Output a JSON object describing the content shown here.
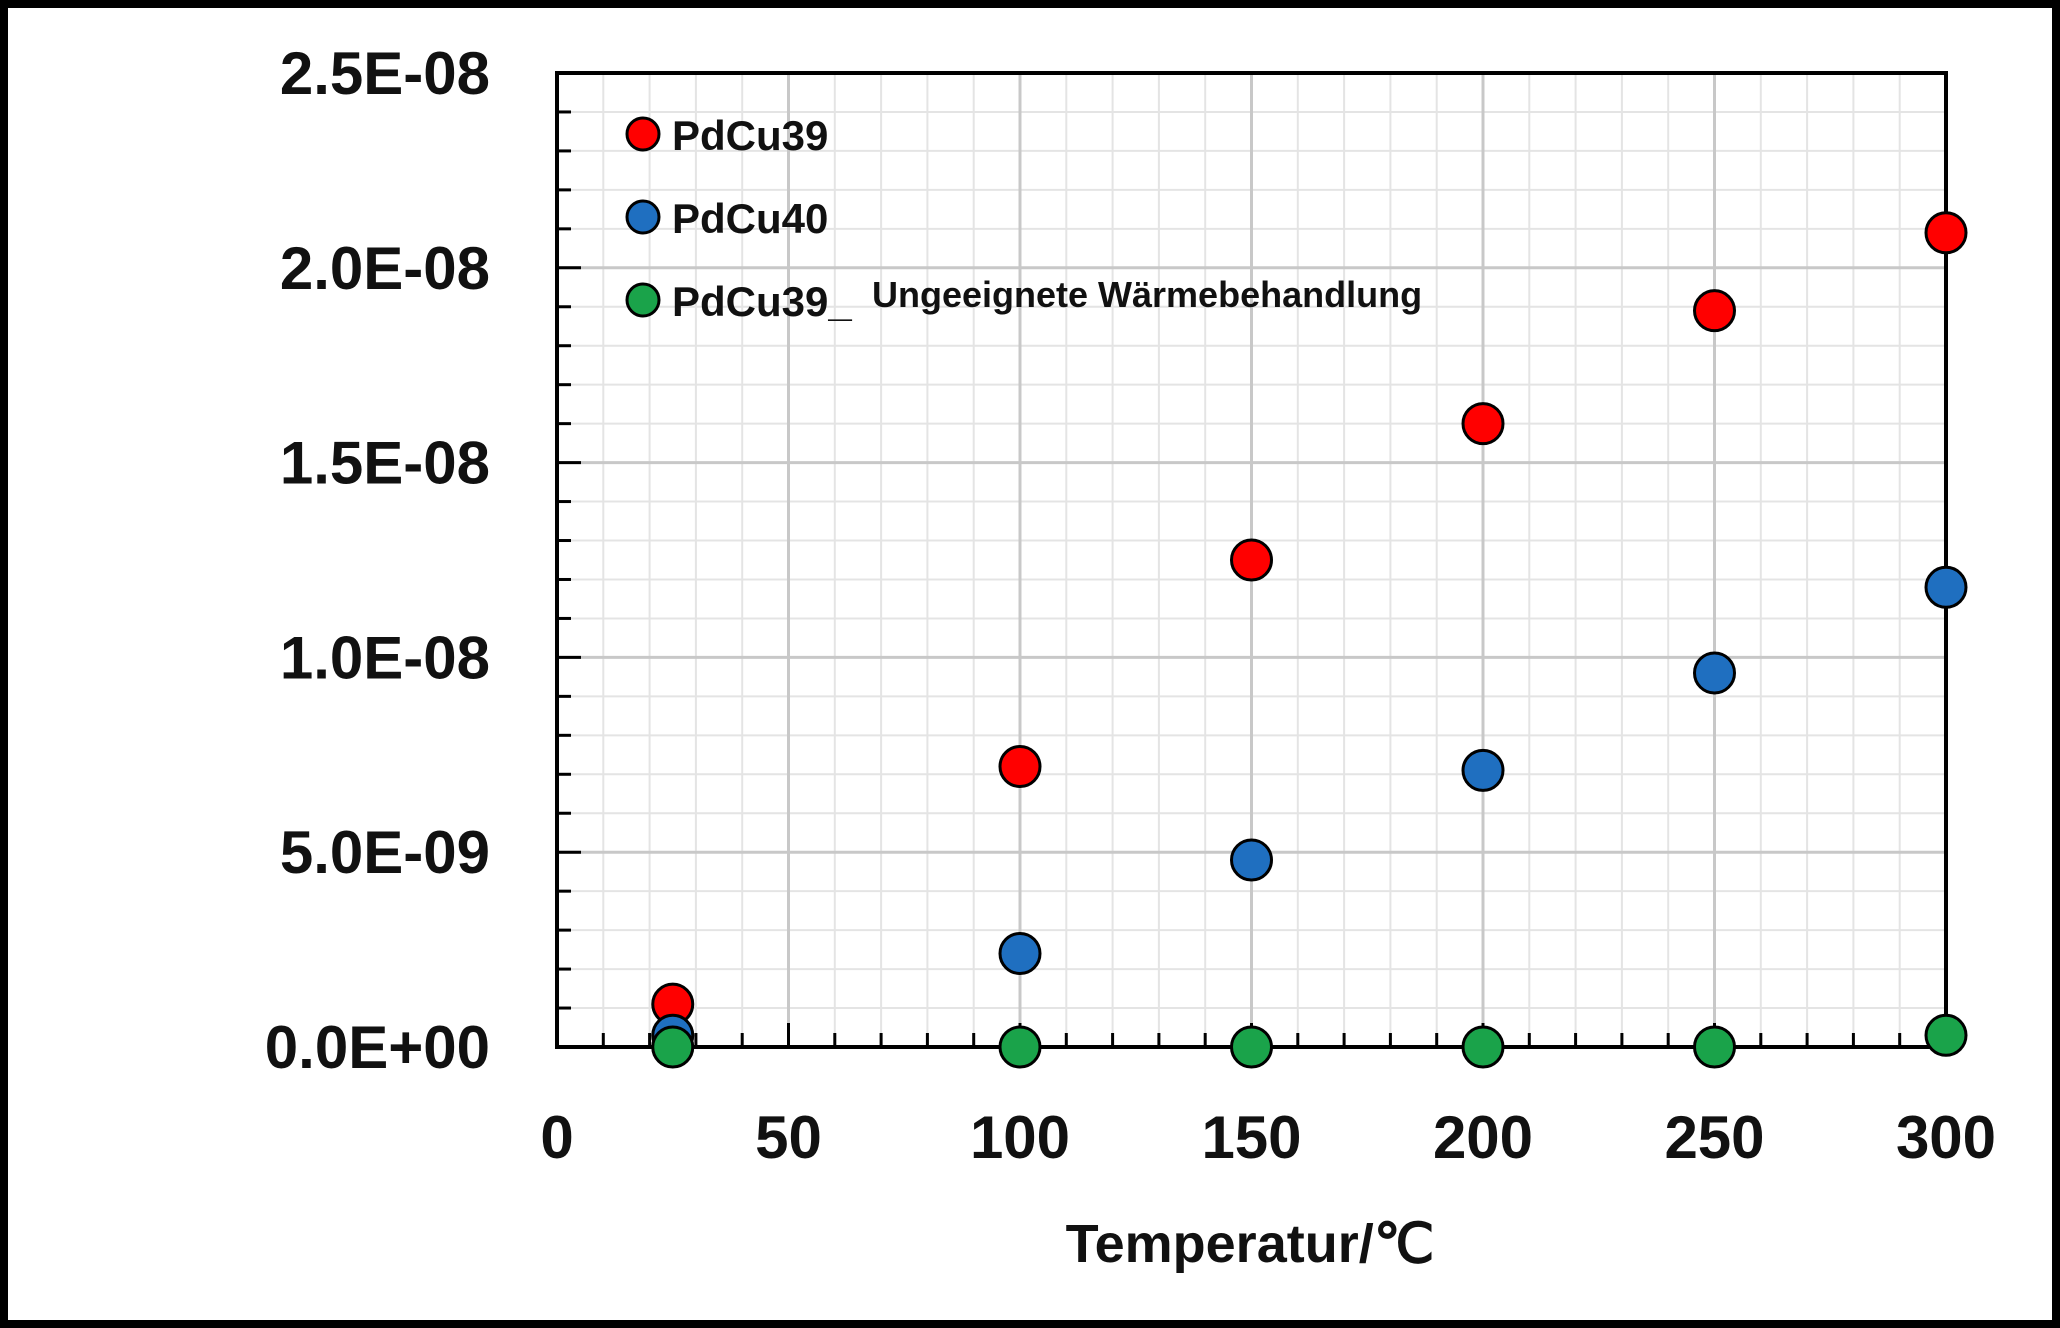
{
  "chart_data": {
    "type": "scatter",
    "title": "",
    "xlabel": "Temperatur/℃",
    "ylabel": "",
    "xlim": [
      0,
      300
    ],
    "ylim": [
      0,
      2.5e-08
    ],
    "x_ticks": [
      "0",
      "50",
      "100",
      "150",
      "200",
      "250",
      "300"
    ],
    "y_ticks": [
      "0.0E+00",
      "5.0E-09",
      "1.0E-08",
      "1.5E-08",
      "2.0E-08",
      "2.5E-08"
    ],
    "grid": true,
    "legend_position": "top-left",
    "series": [
      {
        "name": "PdCu39",
        "color": "#ff0000",
        "x": [
          25,
          100,
          150,
          200,
          250,
          300
        ],
        "y": [
          1.1e-09,
          7.2e-09,
          1.25e-08,
          1.6e-08,
          1.89e-08,
          2.09e-08
        ]
      },
      {
        "name": "PdCu40",
        "color": "#1f6fc0",
        "x": [
          25,
          100,
          150,
          200,
          250,
          300
        ],
        "y": [
          3e-10,
          2.4e-09,
          4.8e-09,
          7.1e-09,
          9.6e-09,
          1.18e-08
        ]
      },
      {
        "name_prefix": "PdCu39_",
        "name_suffix": "Ungeeignete Wärmebehandlung",
        "color": "#1aa34a",
        "x": [
          25,
          100,
          150,
          200,
          250,
          300
        ],
        "y": [
          0,
          0,
          0,
          0,
          0,
          3e-10
        ]
      }
    ]
  }
}
